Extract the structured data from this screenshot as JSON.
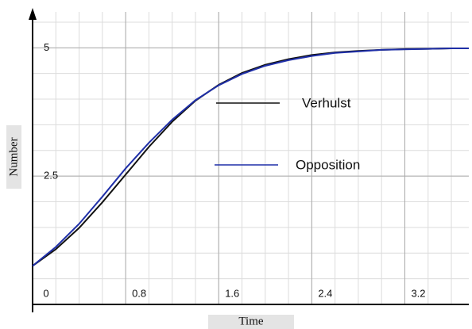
{
  "chart_data": {
    "type": "line",
    "xlabel": "Time",
    "ylabel": "Number",
    "x": [
      0,
      0.2,
      0.4,
      0.6,
      0.8,
      1.0,
      1.2,
      1.4,
      1.6,
      1.8,
      2.0,
      2.2,
      2.4,
      2.6,
      2.8,
      3.0,
      3.2,
      3.4,
      3.6,
      3.75
    ],
    "series": [
      {
        "name": "Verhulst",
        "color": "#111111",
        "values": [
          0.75,
          1.075,
          1.49,
          1.99,
          2.53,
          3.07,
          3.56,
          3.97,
          4.28,
          4.51,
          4.67,
          4.78,
          4.86,
          4.91,
          4.94,
          4.96,
          4.975,
          4.98,
          4.99,
          4.99
        ]
      },
      {
        "name": "Opposition",
        "color": "#1f2fa8",
        "values": [
          0.75,
          1.12,
          1.57,
          2.1,
          2.65,
          3.15,
          3.6,
          3.98,
          4.27,
          4.49,
          4.65,
          4.76,
          4.84,
          4.9,
          4.93,
          4.96,
          4.97,
          4.98,
          4.99,
          4.99
        ]
      }
    ],
    "xlim": [
      0,
      3.75
    ],
    "ylim": [
      0,
      5.7
    ],
    "xticks": [
      0,
      0.8,
      1.6,
      2.4,
      3.2
    ],
    "yticks": [
      2.5,
      5
    ],
    "grid": true,
    "minor_grid": {
      "x": 0.2,
      "y": 0.5
    }
  }
}
